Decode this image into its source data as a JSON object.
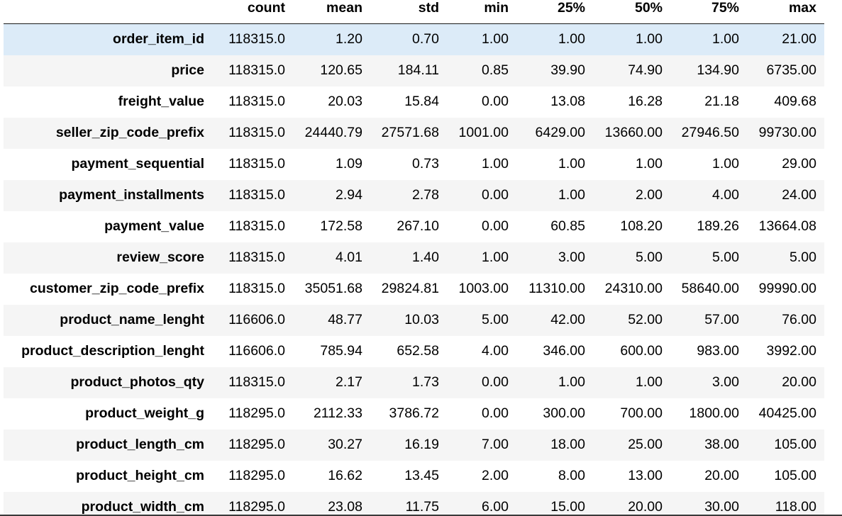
{
  "table": {
    "columns": [
      "count",
      "mean",
      "std",
      "min",
      "25%",
      "50%",
      "75%",
      "max"
    ],
    "rows": [
      {
        "label": "order_item_id",
        "values": [
          "118315.0",
          "1.20",
          "0.70",
          "1.00",
          "1.00",
          "1.00",
          "1.00",
          "21.00"
        ]
      },
      {
        "label": "price",
        "values": [
          "118315.0",
          "120.65",
          "184.11",
          "0.85",
          "39.90",
          "74.90",
          "134.90",
          "6735.00"
        ]
      },
      {
        "label": "freight_value",
        "values": [
          "118315.0",
          "20.03",
          "15.84",
          "0.00",
          "13.08",
          "16.28",
          "21.18",
          "409.68"
        ]
      },
      {
        "label": "seller_zip_code_prefix",
        "values": [
          "118315.0",
          "24440.79",
          "27571.68",
          "1001.00",
          "6429.00",
          "13660.00",
          "27946.50",
          "99730.00"
        ]
      },
      {
        "label": "payment_sequential",
        "values": [
          "118315.0",
          "1.09",
          "0.73",
          "1.00",
          "1.00",
          "1.00",
          "1.00",
          "29.00"
        ]
      },
      {
        "label": "payment_installments",
        "values": [
          "118315.0",
          "2.94",
          "2.78",
          "0.00",
          "1.00",
          "2.00",
          "4.00",
          "24.00"
        ]
      },
      {
        "label": "payment_value",
        "values": [
          "118315.0",
          "172.58",
          "267.10",
          "0.00",
          "60.85",
          "108.20",
          "189.26",
          "13664.08"
        ]
      },
      {
        "label": "review_score",
        "values": [
          "118315.0",
          "4.01",
          "1.40",
          "1.00",
          "3.00",
          "5.00",
          "5.00",
          "5.00"
        ]
      },
      {
        "label": "customer_zip_code_prefix",
        "values": [
          "118315.0",
          "35051.68",
          "29824.81",
          "1003.00",
          "11310.00",
          "24310.00",
          "58640.00",
          "99990.00"
        ]
      },
      {
        "label": "product_name_lenght",
        "values": [
          "116606.0",
          "48.77",
          "10.03",
          "5.00",
          "42.00",
          "52.00",
          "57.00",
          "76.00"
        ]
      },
      {
        "label": "product_description_lenght",
        "values": [
          "116606.0",
          "785.94",
          "652.58",
          "4.00",
          "346.00",
          "600.00",
          "983.00",
          "3992.00"
        ]
      },
      {
        "label": "product_photos_qty",
        "values": [
          "118315.0",
          "2.17",
          "1.73",
          "0.00",
          "1.00",
          "1.00",
          "3.00",
          "20.00"
        ]
      },
      {
        "label": "product_weight_g",
        "values": [
          "118295.0",
          "2112.33",
          "3786.72",
          "0.00",
          "300.00",
          "700.00",
          "1800.00",
          "40425.00"
        ]
      },
      {
        "label": "product_length_cm",
        "values": [
          "118295.0",
          "30.27",
          "16.19",
          "7.00",
          "18.00",
          "25.00",
          "38.00",
          "105.00"
        ]
      },
      {
        "label": "product_height_cm",
        "values": [
          "118295.0",
          "16.62",
          "13.45",
          "2.00",
          "8.00",
          "13.00",
          "20.00",
          "105.00"
        ]
      },
      {
        "label": "product_width_cm",
        "values": [
          "118295.0",
          "23.08",
          "11.75",
          "6.00",
          "15.00",
          "20.00",
          "30.00",
          "118.00"
        ]
      }
    ],
    "hovered_row": "order_item_id"
  },
  "colors": {
    "hover_row": "#dcebf8",
    "striped_row": "#f5f5f5",
    "text": "#000000",
    "header_rule": "#1a1a1a"
  }
}
